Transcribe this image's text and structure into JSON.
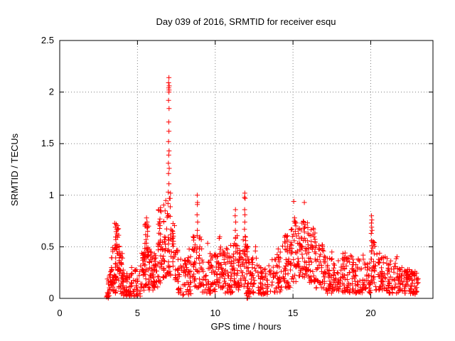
{
  "window": {
    "background_color": "#ffffff"
  },
  "chart_data": {
    "type": "scatter",
    "title": "Day 039 of 2016, SRMTID for receiver esqu",
    "xlabel": "GPS time / hours",
    "ylabel": "SRMTID / TECUs",
    "xlim": [
      0,
      24
    ],
    "ylim": [
      0,
      2.5
    ],
    "xticks": [
      0,
      5,
      10,
      15,
      20
    ],
    "yticks": [
      0,
      0.5,
      1,
      1.5,
      2,
      2.5
    ],
    "grid": "dotted",
    "legend": "none",
    "marker": "plus-cross",
    "marker_size_px": 7,
    "colors": {
      "marker": "#ff0000",
      "grid": "#808080",
      "axis": "#000000",
      "text": "#000000",
      "background": "#ffffff"
    },
    "data_time_extent_hours": [
      3.0,
      23.05
    ],
    "peak_value_tecu": 2.14,
    "peak_time_hours": 7.0,
    "notable_spike_points": [
      [
        7.02,
        2.14
      ],
      [
        7.0,
        2.09
      ],
      [
        7.04,
        2.06
      ],
      [
        7.01,
        2.04
      ],
      [
        7.03,
        2.02
      ],
      [
        7.02,
        2.0
      ],
      [
        7.0,
        1.92
      ],
      [
        7.03,
        1.84
      ],
      [
        7.01,
        1.71
      ],
      [
        7.02,
        1.62
      ],
      [
        7.0,
        1.52
      ],
      [
        7.03,
        1.43
      ],
      [
        7.01,
        1.39
      ],
      [
        6.99,
        1.31
      ],
      [
        7.04,
        1.26
      ],
      [
        7.0,
        1.21
      ],
      [
        7.02,
        1.11
      ],
      [
        6.98,
        1.03
      ],
      [
        7.05,
        0.97
      ],
      [
        6.96,
        0.92
      ],
      [
        7.12,
        1.02
      ],
      [
        7.1,
        0.97
      ],
      [
        6.48,
        0.88
      ],
      [
        6.52,
        0.84
      ],
      [
        3.63,
        0.72
      ],
      [
        3.58,
        0.69
      ],
      [
        3.67,
        0.67
      ],
      [
        5.58,
        0.78
      ],
      [
        5.62,
        0.74
      ],
      [
        8.84,
        1.0
      ],
      [
        8.86,
        0.93
      ],
      [
        8.85,
        0.91
      ],
      [
        8.83,
        0.81
      ],
      [
        8.87,
        0.74
      ],
      [
        8.85,
        0.66
      ],
      [
        11.3,
        0.86
      ],
      [
        11.28,
        0.8
      ],
      [
        11.32,
        0.74
      ],
      [
        11.29,
        0.66
      ],
      [
        11.31,
        0.59
      ],
      [
        11.9,
        1.02
      ],
      [
        11.88,
        0.98
      ],
      [
        11.92,
        0.97
      ],
      [
        11.89,
        0.86
      ],
      [
        11.91,
        0.81
      ],
      [
        11.9,
        0.74
      ],
      [
        11.88,
        0.67
      ],
      [
        11.92,
        0.6
      ],
      [
        12.6,
        0.5
      ],
      [
        12.58,
        0.46
      ],
      [
        14.5,
        0.61
      ],
      [
        14.47,
        0.55
      ],
      [
        15.05,
        0.94
      ],
      [
        15.1,
        0.78
      ],
      [
        15.12,
        0.73
      ],
      [
        15.15,
        0.65
      ],
      [
        15.73,
        0.93
      ],
      [
        15.7,
        0.74
      ],
      [
        15.75,
        0.69
      ],
      [
        16.3,
        0.68
      ],
      [
        16.28,
        0.62
      ],
      [
        17.5,
        0.45
      ],
      [
        18.35,
        0.44
      ],
      [
        20.05,
        0.8
      ],
      [
        20.07,
        0.76
      ],
      [
        20.04,
        0.73
      ],
      [
        20.06,
        0.69
      ],
      [
        20.08,
        0.66
      ],
      [
        20.03,
        0.63
      ],
      [
        20.05,
        0.56
      ],
      [
        20.07,
        0.51
      ],
      [
        20.04,
        0.45
      ]
    ],
    "cluster_model": {
      "description": "Dense scatter cloud segments: [t_start_hr, t_end_hr, n_points, v_min_TECU, v_max_TECU, low_bias_power]",
      "seed": 39,
      "segments": [
        [
          3.0,
          3.15,
          10,
          0.0,
          0.06,
          1.0
        ],
        [
          3.05,
          3.3,
          18,
          0.02,
          0.28,
          1.3
        ],
        [
          3.3,
          3.5,
          25,
          0.05,
          0.5,
          1.4
        ],
        [
          3.5,
          3.85,
          60,
          0.05,
          0.73,
          1.2
        ],
        [
          3.85,
          4.1,
          30,
          0.03,
          0.45,
          1.4
        ],
        [
          4.1,
          4.35,
          22,
          0.02,
          0.25,
          1.3
        ],
        [
          4.3,
          4.55,
          12,
          0.0,
          0.08,
          1.0
        ],
        [
          4.45,
          5.25,
          45,
          0.02,
          0.32,
          1.5
        ],
        [
          5.25,
          5.45,
          25,
          0.08,
          0.5,
          1.3
        ],
        [
          5.45,
          5.75,
          45,
          0.1,
          0.78,
          1.2
        ],
        [
          5.75,
          6.05,
          30,
          0.08,
          0.5,
          1.3
        ],
        [
          6.05,
          6.3,
          25,
          0.1,
          0.45,
          1.2
        ],
        [
          6.3,
          6.6,
          35,
          0.15,
          0.88,
          1.3
        ],
        [
          6.6,
          7.15,
          55,
          0.2,
          0.95,
          1.1
        ],
        [
          7.15,
          7.4,
          20,
          0.3,
          0.75,
          1.2
        ],
        [
          7.4,
          7.65,
          18,
          0.15,
          0.5,
          1.3
        ],
        [
          7.6,
          8.45,
          55,
          0.03,
          0.38,
          1.5
        ],
        [
          8.0,
          8.45,
          16,
          0.2,
          0.52,
          1.2
        ],
        [
          8.5,
          9.15,
          55,
          0.1,
          0.62,
          1.4
        ],
        [
          9.15,
          10.0,
          50,
          0.05,
          0.45,
          1.5
        ],
        [
          9.5,
          9.75,
          8,
          0.3,
          0.55,
          1.2
        ],
        [
          10.0,
          10.5,
          45,
          0.1,
          0.64,
          1.3
        ],
        [
          10.5,
          11.15,
          45,
          0.05,
          0.45,
          1.5
        ],
        [
          10.7,
          11.1,
          12,
          0.2,
          0.56,
          1.2
        ],
        [
          11.15,
          11.45,
          30,
          0.1,
          0.62,
          1.3
        ],
        [
          11.45,
          11.75,
          25,
          0.08,
          0.5,
          1.4
        ],
        [
          11.75,
          12.1,
          35,
          0.1,
          0.6,
          1.2
        ],
        [
          12.0,
          12.2,
          10,
          0.0,
          0.07,
          1.0
        ],
        [
          12.1,
          12.75,
          40,
          0.05,
          0.42,
          1.5
        ],
        [
          12.75,
          13.65,
          55,
          0.04,
          0.32,
          1.5
        ],
        [
          13.65,
          14.25,
          45,
          0.06,
          0.5,
          1.4
        ],
        [
          14.25,
          14.85,
          50,
          0.1,
          0.62,
          1.3
        ],
        [
          14.85,
          15.35,
          40,
          0.15,
          0.75,
          1.25
        ],
        [
          15.35,
          15.95,
          55,
          0.2,
          0.75,
          1.2
        ],
        [
          15.95,
          16.45,
          45,
          0.15,
          0.68,
          1.25
        ],
        [
          16.45,
          17.1,
          50,
          0.1,
          0.52,
          1.4
        ],
        [
          17.1,
          18.1,
          70,
          0.05,
          0.4,
          1.6
        ],
        [
          18.1,
          18.65,
          45,
          0.06,
          0.44,
          1.5
        ],
        [
          18.65,
          19.55,
          60,
          0.05,
          0.42,
          1.5
        ],
        [
          19.55,
          20.0,
          30,
          0.05,
          0.35,
          1.4
        ],
        [
          20.0,
          20.3,
          25,
          0.15,
          0.55,
          1.2
        ],
        [
          20.3,
          20.75,
          35,
          0.08,
          0.45,
          1.4
        ],
        [
          20.75,
          21.8,
          65,
          0.05,
          0.42,
          1.5
        ],
        [
          21.8,
          22.55,
          55,
          0.05,
          0.3,
          1.5
        ],
        [
          22.55,
          23.05,
          40,
          0.04,
          0.26,
          1.4
        ]
      ]
    }
  }
}
